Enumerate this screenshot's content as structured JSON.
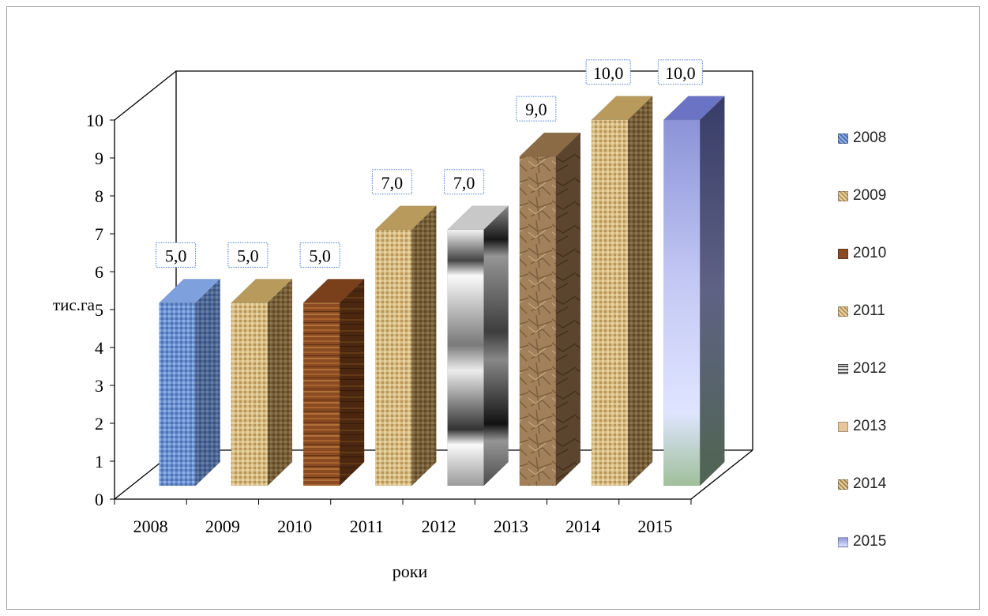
{
  "chart_data": {
    "type": "bar",
    "categories": [
      "2008",
      "2009",
      "2010",
      "2011",
      "2012",
      "2013",
      "2014",
      "2015"
    ],
    "values": [
      5.0,
      5.0,
      5.0,
      7.0,
      7.0,
      9.0,
      10.0,
      10.0
    ],
    "data_labels": [
      "5,0",
      "5,0",
      "5,0",
      "7,0",
      "7,0",
      "9,0",
      "10,0",
      "10,0"
    ],
    "xlabel": "роки",
    "ylabel": "тис.га",
    "yticks": [
      "0",
      "1",
      "2",
      "3",
      "4",
      "5",
      "6",
      "7",
      "8",
      "9",
      "10"
    ],
    "ylim": [
      0,
      10
    ],
    "grid": false,
    "legend_position": "right",
    "legend": [
      "2008",
      "2009",
      "2010",
      "2011",
      "2012",
      "2013",
      "2014",
      "2015"
    ],
    "colors": [
      "#6b8fcf",
      "#c9a86a",
      "#8a4b22",
      "#c2a060",
      "#b8b8b8",
      "#a2815a",
      "#c7a567",
      "#9fa7dc"
    ]
  }
}
